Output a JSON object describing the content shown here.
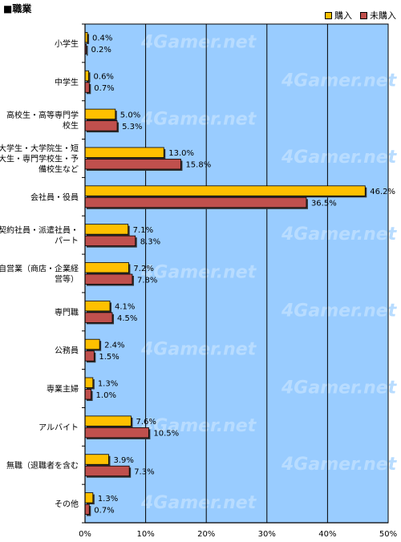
{
  "chart_data": {
    "type": "bar",
    "orientation": "horizontal",
    "title": "■職業",
    "categories": [
      "小学生",
      "中学生",
      "高校生・高等専門学校生",
      "大学生・大学院生・短大生・専門学校生・予備校生など",
      "会社員・役員",
      "契約社員・派遣社員・パート",
      "自営業（商店・企業経営等）",
      "専門職",
      "公務員",
      "専業主婦",
      "アルバイト",
      "無職（退職者を含む）",
      "その他"
    ],
    "category_lines": [
      [
        "小学生"
      ],
      [
        "中学生"
      ],
      [
        "高校生・高等専門学",
        "校生"
      ],
      [
        "大学生・大学院生・短",
        "大生・専門学校生・予",
        "備校生など"
      ],
      [
        "会社員・役員"
      ],
      [
        "契約社員・派遣社員・",
        "パート"
      ],
      [
        "自営業（商店・企業経",
        "営等）"
      ],
      [
        "専門職"
      ],
      [
        "公務員"
      ],
      [
        "専業主婦"
      ],
      [
        "アルバイト"
      ],
      [
        "無職（退職者を含む"
      ],
      [
        "その他"
      ]
    ],
    "series": [
      {
        "name": "購入",
        "color": "#FFC000",
        "values": [
          0.4,
          0.6,
          5.0,
          13.0,
          46.2,
          7.1,
          7.2,
          4.1,
          2.4,
          1.3,
          7.6,
          3.9,
          1.3
        ],
        "labels": [
          "0.4%",
          "0.6%",
          "5.0%",
          "13.0%",
          "46.2%",
          "7.1%",
          "7.2%",
          "4.1%",
          "2.4%",
          "1.3%",
          "7.6%",
          "3.9%",
          "1.3%"
        ]
      },
      {
        "name": "未購入",
        "color": "#C0504D",
        "values": [
          0.2,
          0.7,
          5.3,
          15.8,
          36.5,
          8.3,
          7.8,
          4.5,
          1.5,
          1.0,
          10.5,
          7.3,
          0.7
        ],
        "labels": [
          "0.2%",
          "0.7%",
          "5.3%",
          "15.8%",
          "36.5%",
          "8.3%",
          "7.8%",
          "4.5%",
          "1.5%",
          "1.0%",
          "10.5%",
          "7.3%",
          "0.7%"
        ]
      }
    ],
    "xlim": [
      0,
      50
    ],
    "xticks": [
      0,
      10,
      20,
      30,
      40,
      50
    ],
    "xtick_labels": [
      "0%",
      "10%",
      "20%",
      "30%",
      "40%",
      "50%"
    ],
    "grid": true,
    "legend_position": "top-right",
    "plot_background": "#99CCFF",
    "watermark": "4Gamer.net"
  }
}
